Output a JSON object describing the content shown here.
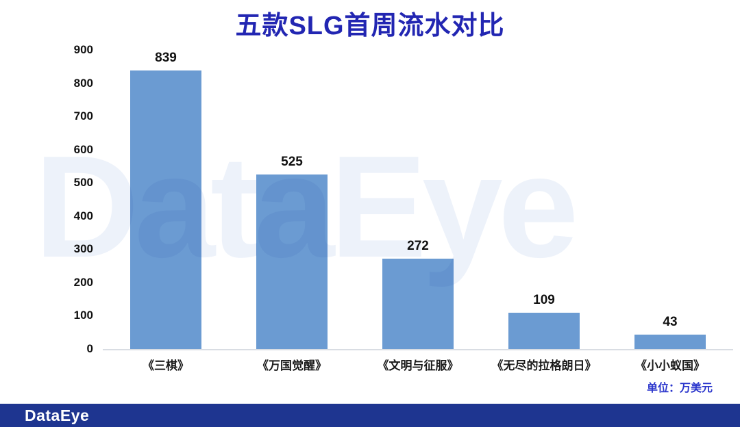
{
  "page": {
    "title": "五款SLG首周流水对比",
    "unit_label": "单位：万美元",
    "watermark": "DataEye",
    "footer_logo": "DataEye"
  },
  "colors": {
    "bar": "#6b9bd2",
    "title": "#2226b2",
    "unit": "#2b36cc",
    "footer_bg": "#1e3590",
    "watermark": "#edf2fa",
    "axis_line": "#d9dde3",
    "label": "#111111"
  },
  "chart_data": {
    "type": "bar",
    "title": "五款SLG首周流水对比",
    "categories": [
      "《三棋》",
      "《万国觉醒》",
      "《文明与征服》",
      "《无尽的拉格朗日》",
      "《小小蚁国》"
    ],
    "values": [
      839,
      525,
      272,
      109,
      43
    ],
    "unit": "万美元",
    "xlabel": "",
    "ylabel": "",
    "ylim": [
      0,
      900
    ],
    "yticks": [
      0,
      100,
      200,
      300,
      400,
      500,
      600,
      700,
      800,
      900
    ],
    "grid": false,
    "legend": false,
    "value_labels": true,
    "bar_color": "#6b9bd2"
  }
}
